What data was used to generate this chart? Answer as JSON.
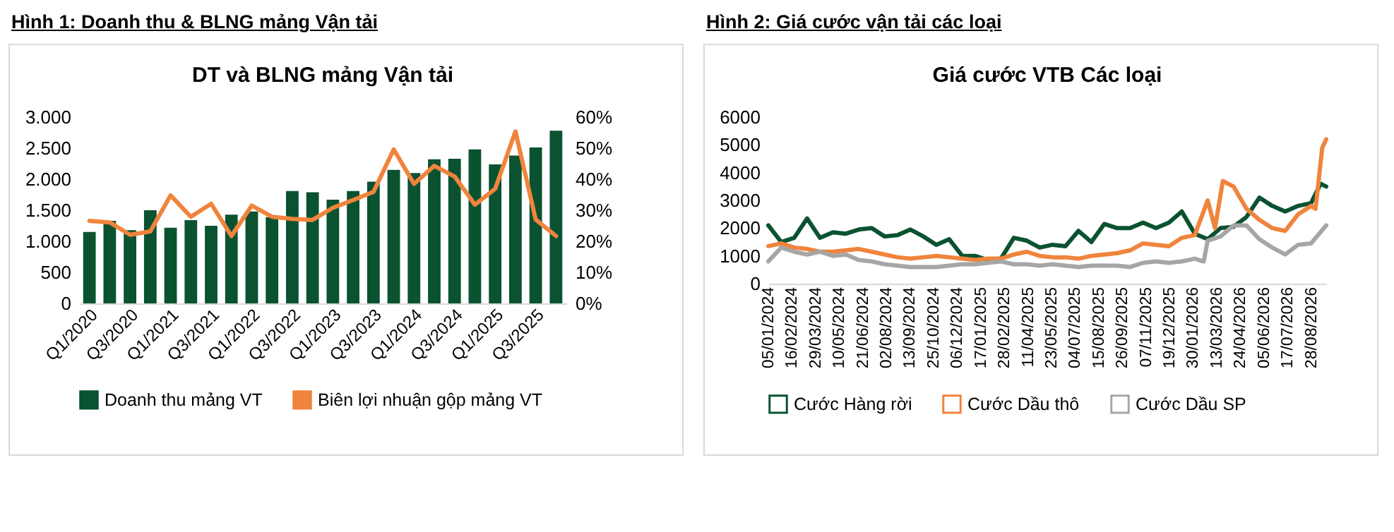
{
  "chart_data": [
    {
      "type": "bar",
      "title": "Hình 1: Doanh thu & BLNG mảng Vận tải",
      "subtitle": "DT và BLNG mảng Vận tải",
      "categories": [
        "Q1/2020",
        null,
        "Q3/2020",
        null,
        "Q1/2021",
        null,
        "Q3/2021",
        null,
        "Q1/2022",
        null,
        "Q3/2022",
        null,
        "Q1/2023",
        null,
        "Q3/2023",
        null,
        "Q1/2024",
        null,
        "Q3/2024",
        null,
        "Q1/2025",
        null,
        "Q3/2025",
        null
      ],
      "series": [
        {
          "name": "Doanh thu mảng VT",
          "color": "#0b5231",
          "values": [
            1150,
            1330,
            1180,
            1500,
            1220,
            1340,
            1250,
            1430,
            1480,
            1390,
            1810,
            1790,
            1670,
            1810,
            1960,
            2150,
            2100,
            2320,
            2330,
            2480,
            2240,
            2380,
            2510,
            2780
          ]
        },
        {
          "name": "Biên lợi nhuận gộp mảng VT",
          "type": "line",
          "axis": "y2",
          "color": "#f0843c",
          "values": [
            26.6,
            26.1,
            22.1,
            23.2,
            34.8,
            27.9,
            32.1,
            21.7,
            31.5,
            27.9,
            27.2,
            26.9,
            30.8,
            33.3,
            35.9,
            49.6,
            38.5,
            44.3,
            40.9,
            31.8,
            36.9,
            55.4,
            27.0,
            21.7
          ]
        }
      ],
      "ylim": [
        0,
        3000
      ],
      "yticks": [
        0,
        500,
        {
          "value": 1000,
          "label": "1.000"
        },
        {
          "value": 1500,
          "label": "1.500"
        },
        {
          "value": 2000,
          "label": "2.000"
        },
        {
          "value": 2500,
          "label": "2.500"
        },
        {
          "value": 3000,
          "label": "3.000"
        }
      ],
      "y2lim": [
        0,
        60
      ],
      "y2ticks": [
        {
          "value": 0,
          "label": "0%"
        },
        {
          "value": 10,
          "label": "10%"
        },
        {
          "value": 20,
          "label": "20%"
        },
        {
          "value": 30,
          "label": "30%"
        },
        {
          "value": 40,
          "label": "40%"
        },
        {
          "value": 50,
          "label": "50%"
        },
        {
          "value": 60,
          "label": "60%"
        }
      ],
      "legend": "bottom"
    },
    {
      "type": "line",
      "title": "Hình 2: Giá cước vận tải các loại",
      "subtitle": "Giá cước VTB Các loại",
      "series": [
        {
          "name": "Cước Hàng rời",
          "color": "#0b5231",
          "x": [
            "2024-01-05",
            "2024-01-28",
            "2024-02-20",
            "2024-03-14",
            "2024-04-06",
            "2024-04-29",
            "2024-05-22",
            "2024-06-14",
            "2024-07-07",
            "2024-07-30",
            "2024-08-22",
            "2024-09-14",
            "2024-10-07",
            "2024-10-30",
            "2024-11-22",
            "2024-12-15",
            "2025-01-07",
            "2025-01-30",
            "2025-02-22",
            "2025-03-17",
            "2025-04-09",
            "2025-05-02",
            "2025-05-25",
            "2025-06-17",
            "2025-07-10",
            "2025-08-02",
            "2025-08-25",
            "2025-09-17",
            "2025-10-10",
            "2025-11-02",
            "2025-11-25",
            "2025-12-18",
            "2026-01-10",
            "2026-02-02",
            "2026-02-25",
            "2026-03-20",
            "2026-04-12",
            "2026-05-05",
            "2026-05-28",
            "2026-06-20",
            "2026-07-13",
            "2026-08-05",
            "2026-08-28",
            "2026-09-14",
            "2026-09-24"
          ],
          "values": [
            2100,
            1500,
            1650,
            2350,
            1650,
            1850,
            1800,
            1950,
            2000,
            1700,
            1750,
            1950,
            1700,
            1400,
            1600,
            1000,
            1000,
            850,
            900,
            1650,
            1550,
            1300,
            1400,
            1350,
            1900,
            1500,
            2150,
            2000,
            2000,
            2200,
            2000,
            2200,
            2600,
            1800,
            1600,
            2000,
            2050,
            2400,
            3100,
            2800,
            2600,
            2800,
            2900,
            3600,
            3500
          ]
        },
        {
          "name": "Cước Dầu thô",
          "color": "#f0843c",
          "x": [
            "2024-01-05",
            "2024-01-28",
            "2024-02-20",
            "2024-03-14",
            "2024-04-06",
            "2024-04-29",
            "2024-05-22",
            "2024-06-14",
            "2024-07-07",
            "2024-07-30",
            "2024-08-22",
            "2024-09-14",
            "2024-10-07",
            "2024-10-30",
            "2024-11-22",
            "2024-12-15",
            "2025-01-07",
            "2025-01-30",
            "2025-02-22",
            "2025-03-17",
            "2025-04-09",
            "2025-05-02",
            "2025-05-25",
            "2025-06-17",
            "2025-07-10",
            "2025-08-02",
            "2025-08-25",
            "2025-09-17",
            "2025-10-10",
            "2025-11-02",
            "2025-11-25",
            "2025-12-18",
            "2026-01-10",
            "2026-02-02",
            "2026-02-25",
            "2026-03-10",
            "2026-03-24",
            "2026-04-12",
            "2026-05-05",
            "2026-05-28",
            "2026-06-20",
            "2026-07-13",
            "2026-08-05",
            "2026-08-28",
            "2026-09-05",
            "2026-09-17",
            "2026-09-24"
          ],
          "values": [
            1350,
            1450,
            1300,
            1250,
            1150,
            1150,
            1200,
            1250,
            1150,
            1050,
            950,
            900,
            950,
            1000,
            950,
            900,
            850,
            900,
            900,
            1050,
            1150,
            1000,
            950,
            950,
            900,
            1000,
            1050,
            1100,
            1200,
            1450,
            1400,
            1350,
            1650,
            1750,
            3000,
            2000,
            3700,
            3500,
            2700,
            2300,
            2000,
            1900,
            2500,
            2800,
            2700,
            4900,
            5200
          ]
        },
        {
          "name": "Cước Dầu SP",
          "color": "#a6a6a6",
          "x": [
            "2024-01-05",
            "2024-01-28",
            "2024-02-20",
            "2024-03-14",
            "2024-04-06",
            "2024-04-29",
            "2024-05-22",
            "2024-06-14",
            "2024-07-07",
            "2024-07-30",
            "2024-08-22",
            "2024-09-14",
            "2024-10-07",
            "2024-10-30",
            "2024-11-22",
            "2024-12-15",
            "2025-01-07",
            "2025-01-30",
            "2025-02-22",
            "2025-03-17",
            "2025-04-09",
            "2025-05-02",
            "2025-05-25",
            "2025-06-17",
            "2025-07-10",
            "2025-08-02",
            "2025-08-25",
            "2025-09-17",
            "2025-10-10",
            "2025-11-02",
            "2025-11-25",
            "2025-12-18",
            "2026-01-10",
            "2026-02-02",
            "2026-02-18",
            "2026-02-25",
            "2026-03-20",
            "2026-04-12",
            "2026-05-05",
            "2026-05-28",
            "2026-06-20",
            "2026-07-13",
            "2026-08-05",
            "2026-08-28",
            "2026-09-24"
          ],
          "values": [
            800,
            1300,
            1150,
            1050,
            1150,
            1000,
            1050,
            850,
            800,
            700,
            650,
            600,
            600,
            600,
            650,
            700,
            700,
            750,
            800,
            700,
            700,
            650,
            700,
            650,
            600,
            650,
            650,
            650,
            600,
            750,
            800,
            750,
            800,
            900,
            800,
            1550,
            1700,
            2100,
            2100,
            1600,
            1300,
            1050,
            1400,
            1450,
            2100
          ]
        }
      ],
      "xlim": [
        "2024-01-05",
        "2026-09-24"
      ],
      "xticks": [
        {
          "value": "2024-01-05",
          "label": "05/01/2024"
        },
        {
          "value": "2024-02-16",
          "label": "16/02/2024"
        },
        {
          "value": "2024-03-29",
          "label": "29/03/2024"
        },
        {
          "value": "2024-05-10",
          "label": "10/05/2024"
        },
        {
          "value": "2024-06-21",
          "label": "21/06/2024"
        },
        {
          "value": "2024-08-02",
          "label": "02/08/2024"
        },
        {
          "value": "2024-09-13",
          "label": "13/09/2024"
        },
        {
          "value": "2024-10-25",
          "label": "25/10/2024"
        },
        {
          "value": "2024-12-06",
          "label": "06/12/2024"
        },
        {
          "value": "2025-01-17",
          "label": "17/01/2025"
        },
        {
          "value": "2025-02-28",
          "label": "28/02/2025"
        },
        {
          "value": "2025-04-11",
          "label": "11/04/2025"
        },
        {
          "value": "2025-05-23",
          "label": "23/05/2025"
        },
        {
          "value": "2025-07-04",
          "label": "04/07/2025"
        },
        {
          "value": "2025-08-15",
          "label": "15/08/2025"
        },
        {
          "value": "2025-09-26",
          "label": "26/09/2025"
        },
        {
          "value": "2025-11-07",
          "label": "07/11/2025"
        },
        {
          "value": "2025-12-19",
          "label": "19/12/2025"
        },
        {
          "value": "2026-01-30",
          "label": "30/01/2026"
        },
        {
          "value": "2026-03-13",
          "label": "13/03/2026"
        },
        {
          "value": "2026-04-24",
          "label": "24/04/2026"
        },
        {
          "value": "2026-06-05",
          "label": "05/06/2026"
        },
        {
          "value": "2026-07-17",
          "label": "17/07/2026"
        },
        {
          "value": "2026-08-28",
          "label": "28/08/2026"
        }
      ],
      "ylim": [
        0,
        6000
      ],
      "yticks": [
        0,
        1000,
        2000,
        3000,
        4000,
        5000,
        6000
      ],
      "legend": "bottom"
    }
  ]
}
